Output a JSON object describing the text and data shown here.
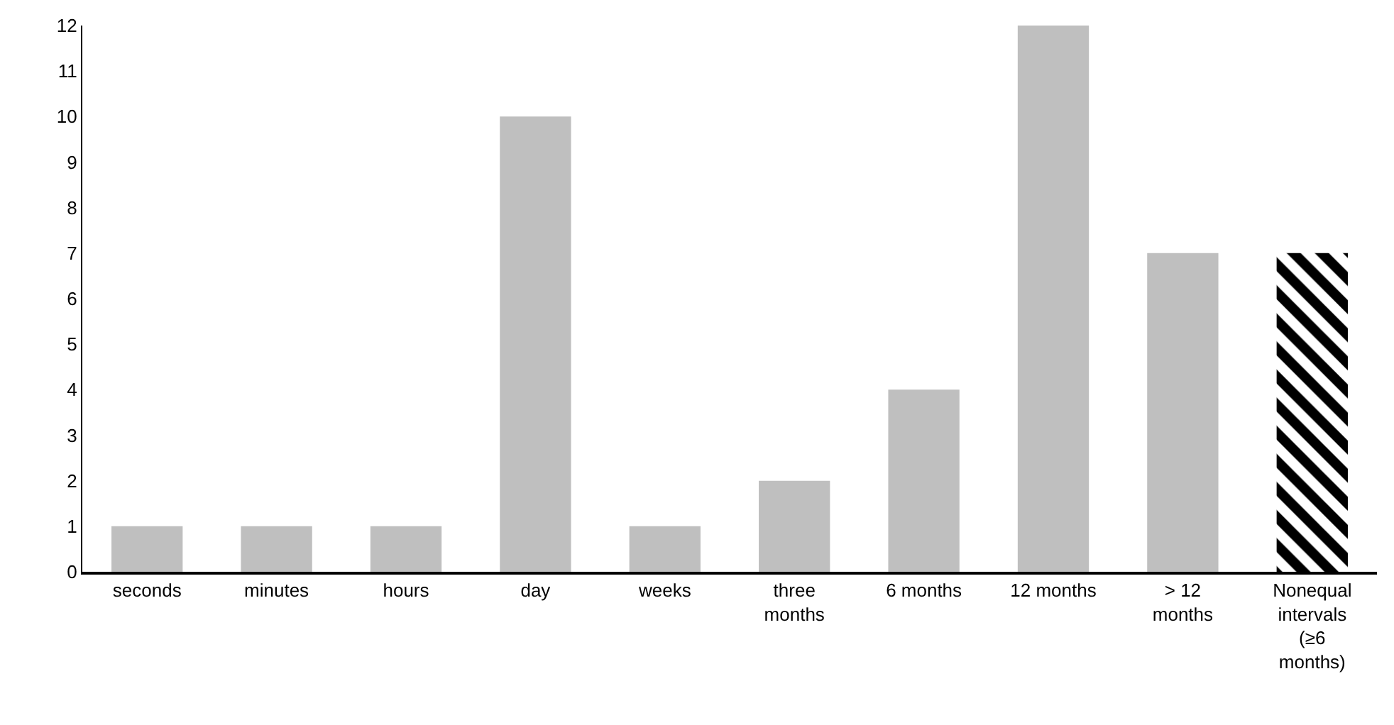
{
  "chart_data": {
    "type": "bar",
    "categories": [
      "seconds",
      "minutes",
      "hours",
      "day",
      "weeks",
      "three months",
      "6 months",
      "12 months",
      "> 12 months",
      "Nonequal intervals (≥6 months)"
    ],
    "values": [
      1,
      1,
      1,
      10,
      1,
      2,
      4,
      12,
      7,
      7
    ],
    "colors": [
      "#bfbfbf",
      "#bfbfbf",
      "#bfbfbf",
      "#bfbfbf",
      "#bfbfbf",
      "#bfbfbf",
      "#bfbfbf",
      "#bfbfbf",
      "#bfbfbf",
      "#000000"
    ],
    "ylim": [
      0,
      12
    ],
    "yticks": [
      0,
      1,
      2,
      3,
      4,
      5,
      6,
      7,
      8,
      9,
      10,
      11,
      12
    ],
    "legend": false
  }
}
